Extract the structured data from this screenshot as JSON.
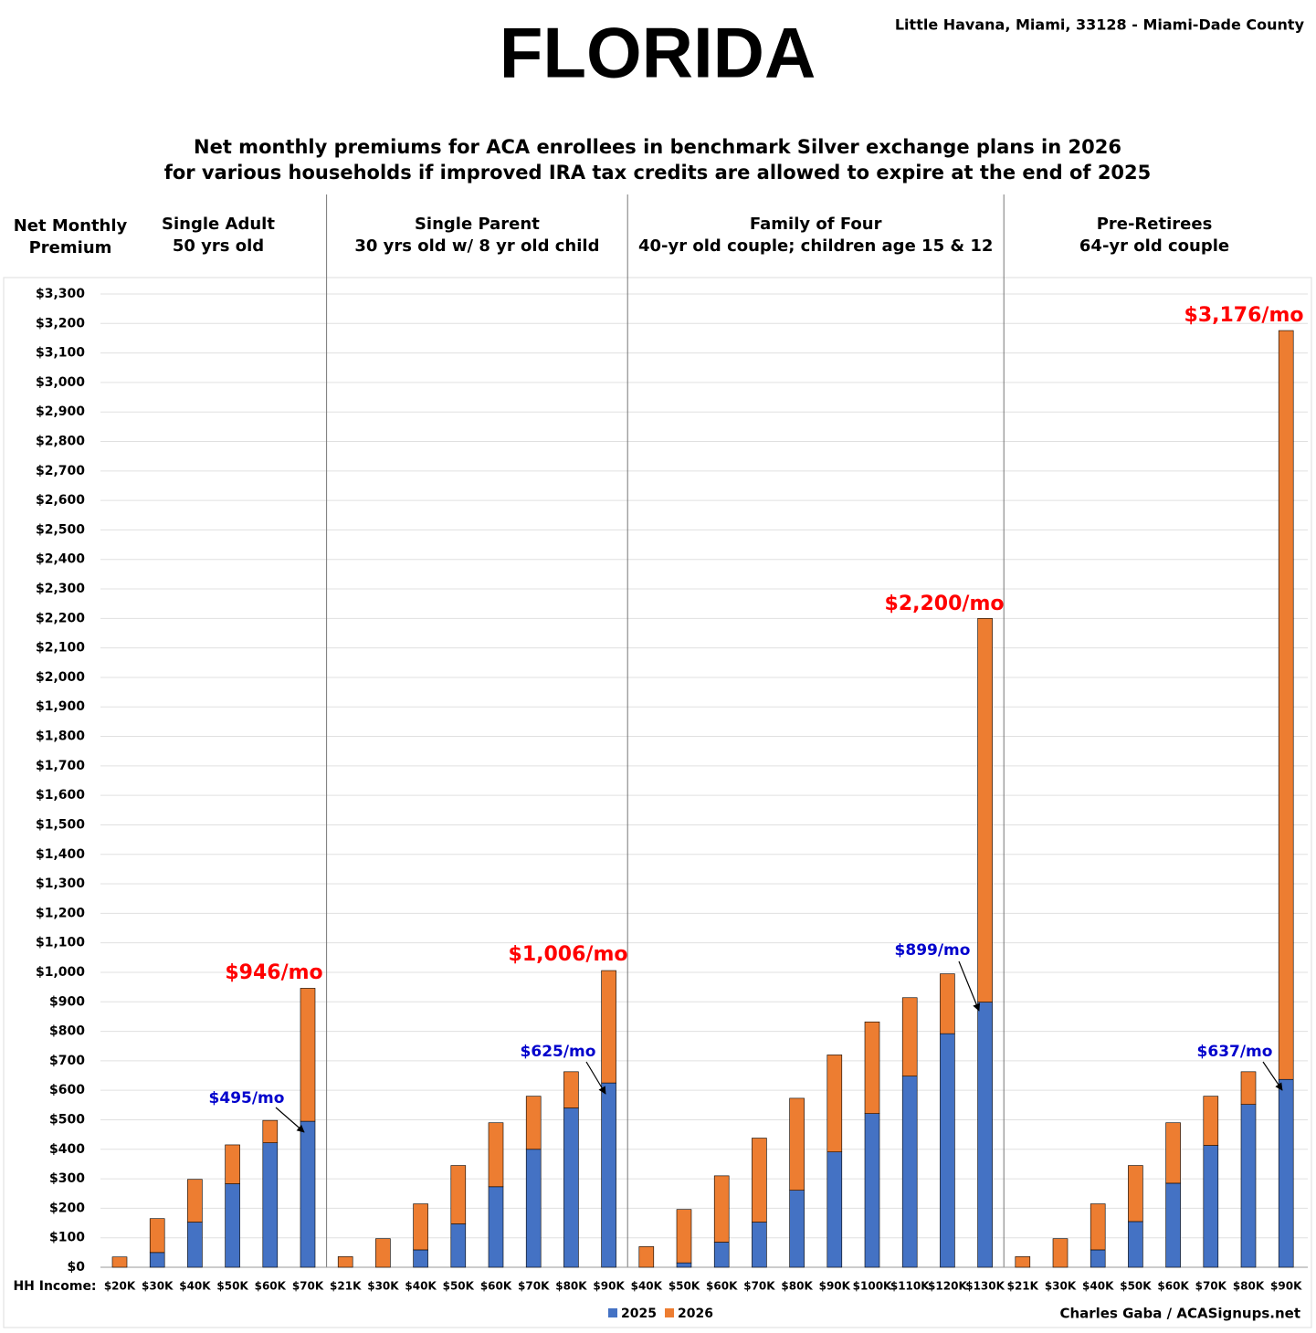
{
  "chart_data": {
    "type": "stacked-bar",
    "title": "FLORIDA",
    "location": "Little Havana, Miami, 33128 - Miami-Dade County",
    "subtitle": [
      "Net monthly premiums for ACA enrollees in benchmark Silver exchange plans in 2026",
      "for various households if improved IRA tax credits are allowed to expire at the end of 2025"
    ],
    "y_label": [
      "Net Monthly",
      "Premium"
    ],
    "x_label": "HH Income:",
    "credit": "Charles Gaba / ACASignups.net",
    "groups": [
      {
        "title": "Single Adult",
        "subtitle": "50 yrs old"
      },
      {
        "title": "Single Parent",
        "subtitle": "30 yrs old w/ 8 yr old child"
      },
      {
        "title": "Family of Four",
        "subtitle": "40-yr old couple; children age 15 & 12"
      },
      {
        "title": "Pre-Retirees",
        "subtitle": "64-yr old couple"
      }
    ],
    "categories": [
      "$20K",
      "$30K",
      "$40K",
      "$50K",
      "$60K",
      "$70K",
      "$21K",
      "$30K",
      "$40K",
      "$50K",
      "$60K",
      "$70K",
      "$80K",
      "$90K",
      "$40K",
      "$50K",
      "$60K",
      "$70K",
      "$80K",
      "$90K",
      "$100K",
      "$110K",
      "$120K",
      "$130K",
      "$21K",
      "$30K",
      "$40K",
      "$50K",
      "$60K",
      "$70K",
      "$80K",
      "$90K"
    ],
    "series": [
      {
        "name": "2025",
        "color": "#4472c4",
        "values": [
          0,
          50,
          153,
          283,
          422,
          495,
          0,
          0,
          59,
          147,
          273,
          400,
          540,
          625,
          0,
          15,
          85,
          153,
          261,
          391,
          521,
          648,
          792,
          899,
          0,
          0,
          59,
          155,
          285,
          413,
          552,
          637
        ]
      },
      {
        "name": "2026",
        "color": "#ed7d31",
        "values": [
          35,
          115,
          145,
          132,
          76,
          451,
          36,
          97,
          156,
          198,
          217,
          180,
          123,
          381,
          70,
          181,
          225,
          285,
          312,
          329,
          311,
          266,
          203,
          1301,
          36,
          97,
          156,
          190,
          205,
          167,
          111,
          2539
        ]
      }
    ],
    "annotations": [
      {
        "text": "$946/mo",
        "color": "#ff0000"
      },
      {
        "text": "$495/mo",
        "color": "#0000cc"
      },
      {
        "text": "$1,006/mo",
        "color": "#ff0000"
      },
      {
        "text": "$625/mo",
        "color": "#0000cc"
      },
      {
        "text": "$2,200/mo",
        "color": "#ff0000"
      },
      {
        "text": "$899/mo",
        "color": "#0000cc"
      },
      {
        "text": "$3,176/mo",
        "color": "#ff0000"
      },
      {
        "text": "$637/mo",
        "color": "#0000cc"
      }
    ],
    "ylim": [
      0,
      3300
    ],
    "yticks": [
      {
        "value": 0,
        "label": "$0"
      },
      {
        "value": 100,
        "label": "$100"
      },
      {
        "value": 200,
        "label": "$200"
      },
      {
        "value": 300,
        "label": "$300"
      },
      {
        "value": 400,
        "label": "$400"
      },
      {
        "value": 500,
        "label": "$500"
      },
      {
        "value": 600,
        "label": "$600"
      },
      {
        "value": 700,
        "label": "$700"
      },
      {
        "value": 800,
        "label": "$800"
      },
      {
        "value": 900,
        "label": "$900"
      },
      {
        "value": 1000,
        "label": "$1,000"
      },
      {
        "value": 1100,
        "label": "$1,100"
      },
      {
        "value": 1200,
        "label": "$1,200"
      },
      {
        "value": 1300,
        "label": "$1,300"
      },
      {
        "value": 1400,
        "label": "$1,400"
      },
      {
        "value": 1500,
        "label": "$1,500"
      },
      {
        "value": 1600,
        "label": "$1,600"
      },
      {
        "value": 1700,
        "label": "$1,700"
      },
      {
        "value": 1800,
        "label": "$1,800"
      },
      {
        "value": 1900,
        "label": "$1,900"
      },
      {
        "value": 2000,
        "label": "$2,000"
      },
      {
        "value": 2100,
        "label": "$2,100"
      },
      {
        "value": 2200,
        "label": "$2,200"
      },
      {
        "value": 2300,
        "label": "$2,300"
      },
      {
        "value": 2400,
        "label": "$2,400"
      },
      {
        "value": 2500,
        "label": "$2,500"
      },
      {
        "value": 2600,
        "label": "$2,600"
      },
      {
        "value": 2700,
        "label": "$2,700"
      },
      {
        "value": 2800,
        "label": "$2,800"
      },
      {
        "value": 2900,
        "label": "$2,900"
      },
      {
        "value": 3000,
        "label": "$3,000"
      },
      {
        "value": 3100,
        "label": "$3,100"
      },
      {
        "value": 3200,
        "label": "$3,200"
      },
      {
        "value": 3300,
        "label": "$3,300"
      }
    ],
    "grid": true
  }
}
